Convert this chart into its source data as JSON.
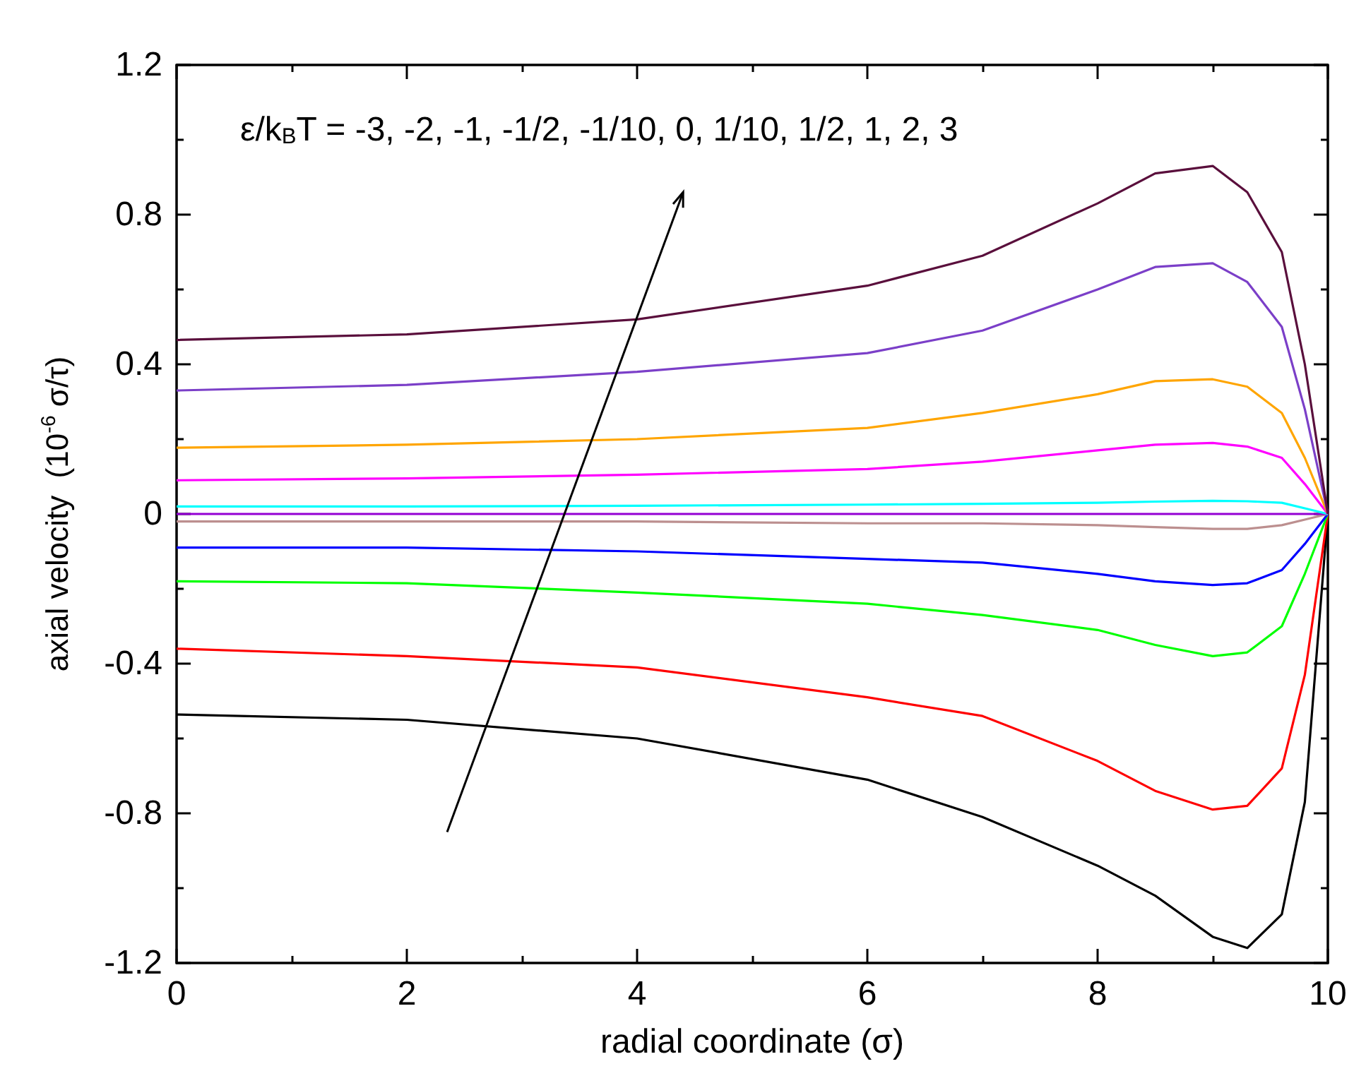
{
  "chart_data": {
    "type": "line",
    "xlabel": "radial coordinate (σ)",
    "ylabel": "axial velocity  (10$^{-6}$ σ/τ)",
    "annotations": [
      "ε/k$_{B}$T = -3, -2, -1, -1/2, -1/10, 0, 1/10, 1/2, 1, 2, 3"
    ],
    "x": [
      0,
      2,
      4,
      6,
      7,
      8,
      8.5,
      9,
      9.3,
      9.6,
      9.8,
      10
    ],
    "series": [
      {
        "color": "#000000",
        "values": [
          -0.536,
          -0.55,
          -0.6,
          -0.71,
          -0.81,
          -0.94,
          -1.02,
          -1.13,
          -1.16,
          -1.07,
          -0.77,
          0
        ]
      },
      {
        "color": "#ff0000",
        "values": [
          -0.36,
          -0.38,
          -0.41,
          -0.49,
          -0.54,
          -0.66,
          -0.74,
          -0.79,
          -0.78,
          -0.68,
          -0.43,
          0
        ]
      },
      {
        "color": "#00ff00",
        "values": [
          -0.18,
          -0.185,
          -0.21,
          -0.24,
          -0.27,
          -0.31,
          -0.35,
          -0.38,
          -0.37,
          -0.3,
          -0.16,
          0
        ]
      },
      {
        "color": "#0000ff",
        "values": [
          -0.09,
          -0.09,
          -0.1,
          -0.12,
          -0.13,
          -0.16,
          -0.18,
          -0.19,
          -0.185,
          -0.15,
          -0.08,
          0
        ]
      },
      {
        "color": "#bc8f8f",
        "values": [
          -0.02,
          -0.02,
          -0.02,
          -0.025,
          -0.025,
          -0.03,
          -0.035,
          -0.04,
          -0.04,
          -0.03,
          -0.015,
          0
        ]
      },
      {
        "color": "#9400d3",
        "values": [
          0,
          0,
          0,
          0,
          0,
          0,
          0,
          0,
          0,
          0,
          0,
          0
        ]
      },
      {
        "color": "#00ffff",
        "values": [
          0.02,
          0.02,
          0.022,
          0.025,
          0.027,
          0.03,
          0.033,
          0.035,
          0.034,
          0.03,
          0.015,
          0
        ]
      },
      {
        "color": "#ff00ff",
        "values": [
          0.09,
          0.095,
          0.105,
          0.12,
          0.14,
          0.17,
          0.185,
          0.19,
          0.18,
          0.15,
          0.08,
          0
        ]
      },
      {
        "color": "#ffa500",
        "values": [
          0.177,
          0.185,
          0.2,
          0.23,
          0.27,
          0.32,
          0.355,
          0.36,
          0.34,
          0.27,
          0.15,
          0
        ]
      },
      {
        "color": "#7b3fc8",
        "values": [
          0.33,
          0.345,
          0.38,
          0.43,
          0.49,
          0.6,
          0.66,
          0.67,
          0.62,
          0.5,
          0.28,
          0
        ]
      },
      {
        "color": "#5a0f3c",
        "values": [
          0.465,
          0.48,
          0.52,
          0.61,
          0.69,
          0.83,
          0.91,
          0.93,
          0.86,
          0.7,
          0.4,
          0
        ]
      }
    ],
    "xlim": [
      0,
      10
    ],
    "xticks": [
      0,
      2,
      4,
      6,
      8,
      10
    ],
    "ylim": [
      -1.2,
      1.2
    ],
    "yticks": [
      -1.2,
      -0.8,
      -0.4,
      0,
      0.4,
      0.8,
      1.2
    ],
    "grid": false,
    "marker": "none",
    "line_style": "solid"
  }
}
